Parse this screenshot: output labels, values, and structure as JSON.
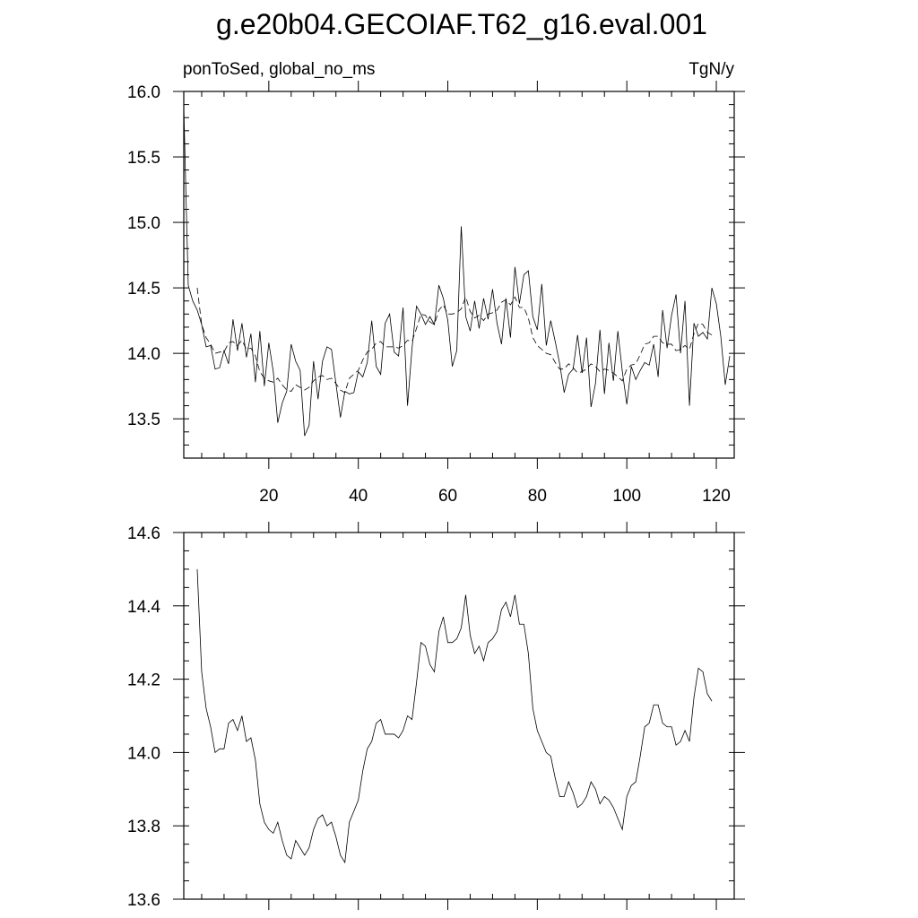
{
  "title": "g.e20b04.GECOIAF.T62_g16.eval.001",
  "chart_data": [
    {
      "type": "line",
      "left_label": "ponToSed, global_no_ms",
      "right_label": "TgN/y",
      "xlim": [
        1,
        124
      ],
      "ylim": [
        13.2,
        16.0
      ],
      "x_ticks": [
        20,
        40,
        60,
        80,
        100,
        120
      ],
      "y_ticks": [
        13.5,
        14.0,
        14.5,
        15.0,
        15.5,
        16.0
      ],
      "y_minor_step": 0.1,
      "x_minor_step": 5,
      "x_start": 1,
      "series": [
        {
          "style": "solid",
          "values": [
            15.88,
            14.52,
            14.4,
            14.33,
            14.22,
            14.05,
            14.06,
            13.88,
            13.89,
            14.02,
            13.92,
            14.26,
            14.02,
            14.23,
            13.97,
            14.15,
            13.78,
            14.17,
            13.75,
            14.08,
            13.86,
            13.47,
            13.62,
            13.71,
            14.07,
            13.94,
            13.87,
            13.37,
            13.45,
            13.94,
            13.65,
            13.94,
            14.05,
            14.03,
            13.77,
            13.51,
            13.71,
            13.69,
            13.7,
            13.86,
            13.82,
            13.93,
            14.25,
            13.9,
            13.84,
            14.23,
            14.3,
            14.01,
            13.98,
            14.35,
            13.6,
            14.04,
            14.36,
            14.3,
            14.22,
            14.28,
            14.22,
            14.52,
            14.42,
            14.25,
            13.9,
            14.02,
            14.97,
            14.28,
            14.17,
            14.4,
            14.19,
            14.42,
            14.26,
            14.49,
            14.23,
            14.07,
            14.42,
            14.12,
            14.66,
            14.38,
            14.6,
            14.63,
            14.28,
            14.18,
            14.53,
            14.06,
            14.25,
            14.09,
            13.92,
            13.7,
            13.84,
            13.88,
            14.14,
            13.85,
            14.12,
            13.59,
            13.77,
            14.18,
            13.69,
            14.08,
            13.79,
            14.17,
            13.86,
            13.61,
            13.9,
            13.8,
            13.87,
            13.93,
            13.91,
            14.07,
            13.82,
            14.33,
            14.04,
            14.29,
            14.45,
            14.0,
            14.4,
            13.6,
            14.23,
            14.13,
            14.16,
            14.11,
            14.5,
            14.38,
            14.13,
            13.76,
            13.98
          ]
        },
        {
          "style": "dashed",
          "values": [
            null,
            null,
            null,
            14.5,
            14.22,
            14.12,
            14.07,
            14.0,
            14.01,
            14.01,
            14.08,
            14.09,
            14.06,
            14.1,
            14.03,
            14.04,
            13.98,
            13.86,
            13.81,
            13.79,
            13.78,
            13.81,
            13.76,
            13.72,
            13.71,
            13.76,
            13.74,
            13.72,
            13.74,
            13.79,
            13.82,
            13.83,
            13.8,
            13.81,
            13.77,
            13.72,
            13.7,
            13.81,
            13.84,
            13.87,
            13.95,
            14.01,
            14.03,
            14.08,
            14.09,
            14.05,
            14.05,
            14.05,
            14.04,
            14.06,
            14.1,
            14.09,
            14.19,
            14.3,
            14.29,
            14.24,
            14.22,
            14.33,
            14.37,
            14.3,
            14.3,
            14.31,
            14.34,
            14.43,
            14.32,
            14.27,
            14.29,
            14.25,
            14.3,
            14.31,
            14.33,
            14.39,
            14.41,
            14.37,
            14.43,
            14.35,
            14.35,
            14.27,
            14.12,
            14.06,
            14.03,
            14.0,
            13.99,
            13.93,
            13.88,
            13.88,
            13.92,
            13.89,
            13.85,
            13.86,
            13.88,
            13.92,
            13.9,
            13.86,
            13.88,
            13.87,
            13.85,
            13.82,
            13.79,
            13.88,
            13.91,
            13.92,
            13.99,
            14.07,
            14.08,
            14.13,
            14.13,
            14.08,
            14.07,
            14.07,
            14.02,
            14.03,
            14.06,
            14.03,
            14.15,
            14.23,
            14.22,
            14.16,
            14.14
          ]
        }
      ]
    },
    {
      "type": "line",
      "xlim": [
        1,
        124
      ],
      "ylim": [
        13.6,
        14.6
      ],
      "x_ticks": [
        20,
        40,
        60,
        80,
        100,
        120
      ],
      "y_ticks": [
        13.6,
        13.8,
        14.0,
        14.2,
        14.4,
        14.6
      ],
      "y_minor_step": 0.05,
      "x_minor_step": 5,
      "x_start": 1,
      "series": [
        {
          "style": "solid",
          "values": [
            null,
            null,
            null,
            14.5,
            14.22,
            14.12,
            14.07,
            14.0,
            14.01,
            14.01,
            14.08,
            14.09,
            14.06,
            14.1,
            14.03,
            14.04,
            13.98,
            13.86,
            13.81,
            13.79,
            13.78,
            13.81,
            13.76,
            13.72,
            13.71,
            13.76,
            13.74,
            13.72,
            13.74,
            13.79,
            13.82,
            13.83,
            13.8,
            13.81,
            13.77,
            13.72,
            13.7,
            13.81,
            13.84,
            13.87,
            13.95,
            14.01,
            14.03,
            14.08,
            14.09,
            14.05,
            14.05,
            14.05,
            14.04,
            14.06,
            14.1,
            14.09,
            14.19,
            14.3,
            14.29,
            14.24,
            14.22,
            14.33,
            14.37,
            14.3,
            14.3,
            14.31,
            14.34,
            14.43,
            14.32,
            14.27,
            14.29,
            14.25,
            14.3,
            14.31,
            14.33,
            14.39,
            14.41,
            14.37,
            14.43,
            14.35,
            14.35,
            14.27,
            14.12,
            14.06,
            14.03,
            14.0,
            13.99,
            13.93,
            13.88,
            13.88,
            13.92,
            13.89,
            13.85,
            13.86,
            13.88,
            13.92,
            13.9,
            13.86,
            13.88,
            13.87,
            13.85,
            13.82,
            13.79,
            13.88,
            13.91,
            13.92,
            13.99,
            14.07,
            14.08,
            14.13,
            14.13,
            14.08,
            14.07,
            14.07,
            14.02,
            14.03,
            14.06,
            14.03,
            14.15,
            14.23,
            14.22,
            14.16,
            14.14
          ]
        }
      ]
    }
  ]
}
